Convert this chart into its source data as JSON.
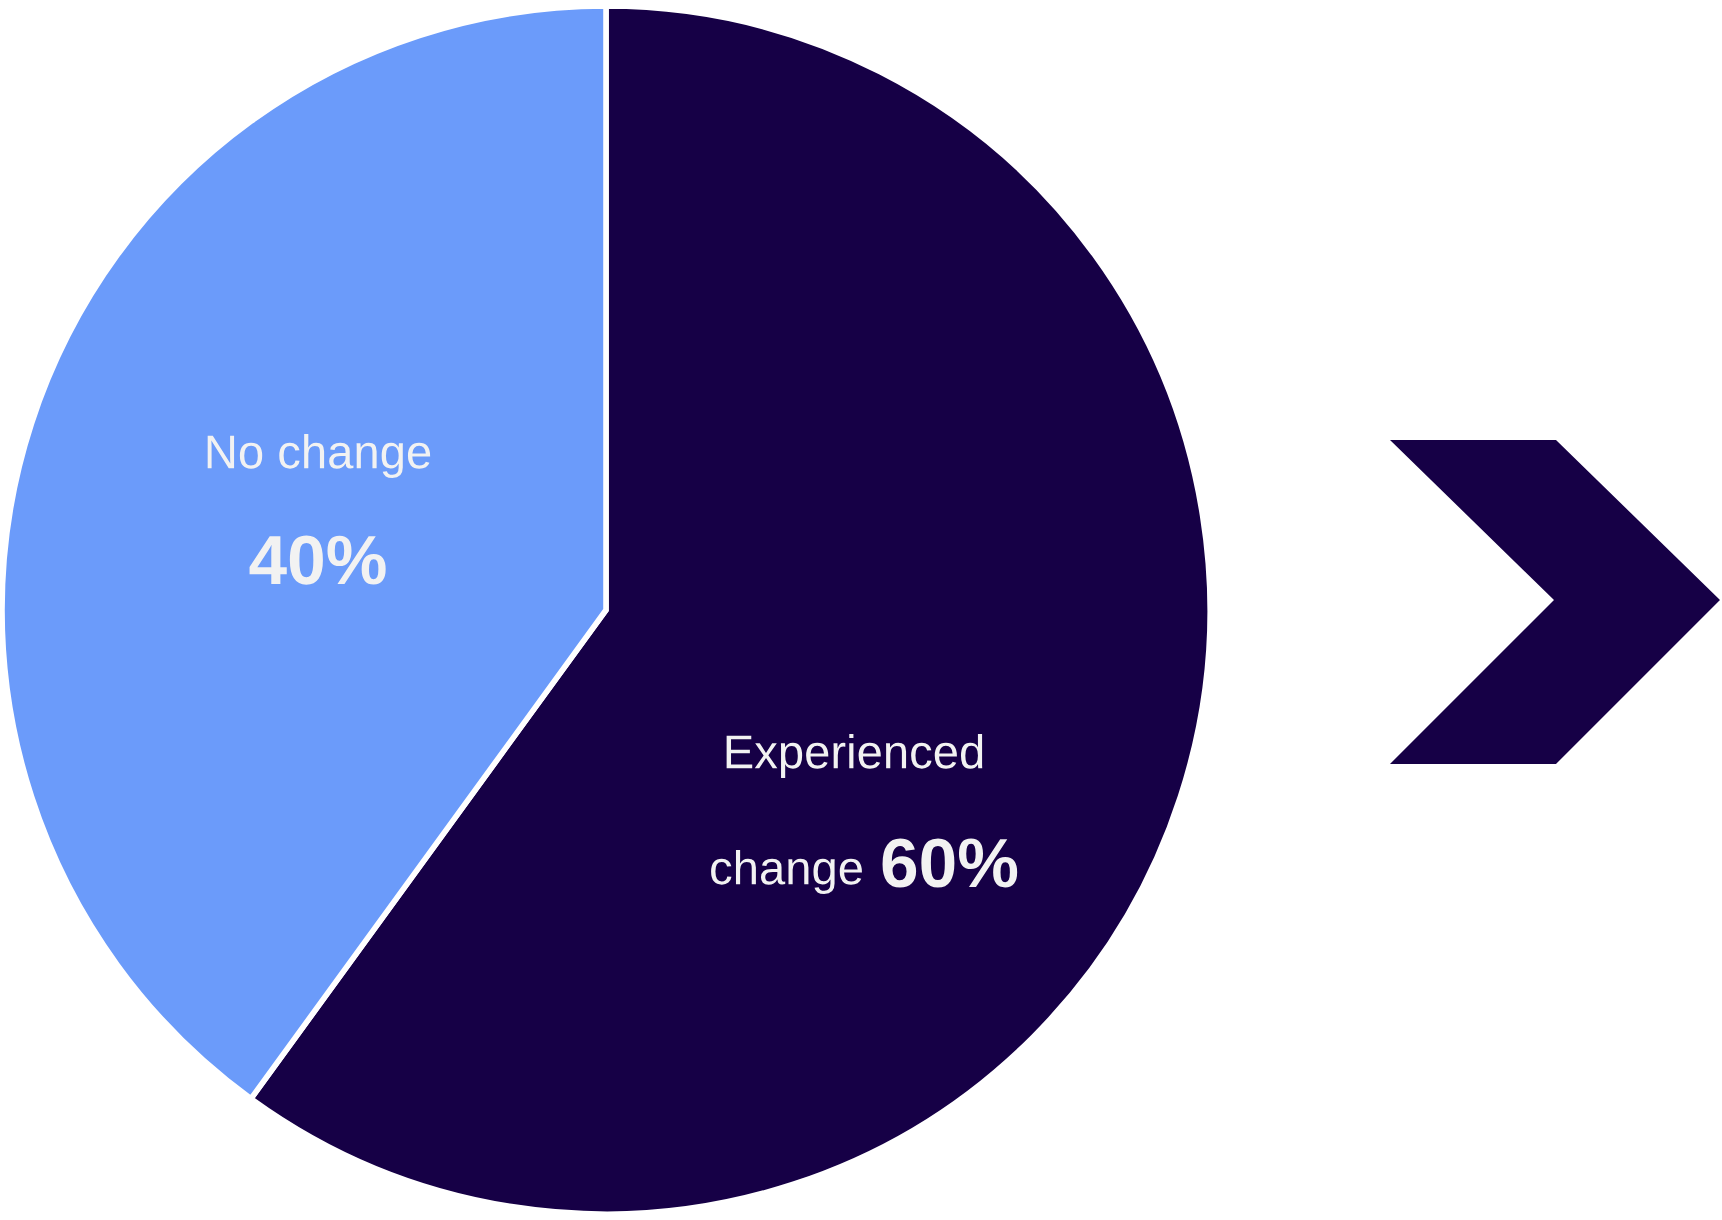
{
  "chart_data": {
    "type": "pie",
    "categories": [
      "Experienced change",
      "No change"
    ],
    "values": [
      60,
      40
    ],
    "colors": [
      "#160046",
      "#6b9bfa"
    ],
    "value_labels": [
      "60%",
      "40%"
    ],
    "legend": false
  }
}
